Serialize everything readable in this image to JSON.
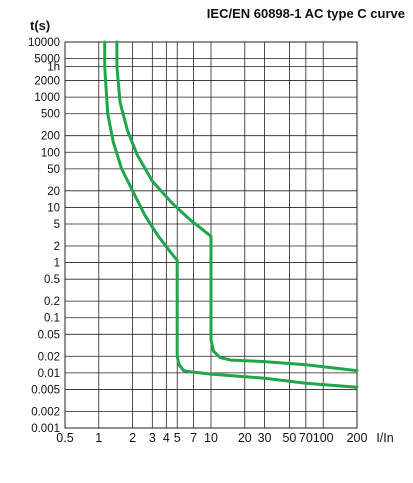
{
  "chart_data": {
    "type": "line",
    "title": "IEC/EN 60898-1 AC type C curve",
    "ylabel": "t(s)",
    "xlabel": "I/In",
    "x_scale": "log",
    "y_scale": "log",
    "xlim": [
      0.5,
      200
    ],
    "ylim": [
      0.001,
      10000
    ],
    "grid": true,
    "line_color": "#1fa64a",
    "y_ticks": [
      {
        "value": 10000,
        "label": "10000"
      },
      {
        "value": 5000,
        "label": "5000"
      },
      {
        "value": 3600,
        "label": "1h"
      },
      {
        "value": 2000,
        "label": "2000"
      },
      {
        "value": 1000,
        "label": "1000"
      },
      {
        "value": 500,
        "label": "500"
      },
      {
        "value": 200,
        "label": "200"
      },
      {
        "value": 100,
        "label": "100"
      },
      {
        "value": 50,
        "label": "50"
      },
      {
        "value": 20,
        "label": "20"
      },
      {
        "value": 10,
        "label": "10"
      },
      {
        "value": 5,
        "label": "5"
      },
      {
        "value": 2,
        "label": "2"
      },
      {
        "value": 1,
        "label": "1"
      },
      {
        "value": 0.5,
        "label": "0.5"
      },
      {
        "value": 0.2,
        "label": "0.2"
      },
      {
        "value": 0.1,
        "label": "0.1"
      },
      {
        "value": 0.05,
        "label": "0.05"
      },
      {
        "value": 0.02,
        "label": "0.02"
      },
      {
        "value": 0.01,
        "label": "0.01"
      },
      {
        "value": 0.005,
        "label": "0.005"
      },
      {
        "value": 0.002,
        "label": "0.002"
      },
      {
        "value": 0.001,
        "label": "0.001"
      }
    ],
    "x_ticks": [
      {
        "value": 0.5,
        "label": "0.5"
      },
      {
        "value": 1,
        "label": "1"
      },
      {
        "value": 2,
        "label": "2"
      },
      {
        "value": 3,
        "label": "3"
      },
      {
        "value": 4,
        "label": "4"
      },
      {
        "value": 5,
        "label": "5"
      },
      {
        "value": 7,
        "label": "7"
      },
      {
        "value": 10,
        "label": "10"
      },
      {
        "value": 20,
        "label": "20"
      },
      {
        "value": 30,
        "label": "30"
      },
      {
        "value": 50,
        "label": "50"
      },
      {
        "value": 70,
        "label": "70"
      },
      {
        "value": 100,
        "label": "100"
      },
      {
        "value": 200,
        "label": "200"
      }
    ],
    "series": [
      {
        "x": [
          1.13,
          1.13,
          1.2,
          1.35,
          1.6,
          2.0,
          2.6,
          3.4,
          4.3,
          5.0,
          5.0,
          5.0,
          5.2,
          5.7,
          6.5,
          10,
          30,
          70,
          200
        ],
        "y": [
          10000,
          3600,
          500,
          150,
          50,
          20,
          7,
          3,
          1.6,
          1.1,
          0.5,
          0.02,
          0.014,
          0.011,
          0.0105,
          0.0095,
          0.008,
          0.0065,
          0.0055
        ]
      },
      {
        "x": [
          1.45,
          1.45,
          1.55,
          1.8,
          2.2,
          3.0,
          4.5,
          6.5,
          10,
          10,
          10,
          10.5,
          12,
          15,
          30,
          70,
          200
        ],
        "y": [
          10000,
          3600,
          800,
          250,
          90,
          30,
          12,
          6,
          3,
          1,
          0.04,
          0.025,
          0.019,
          0.017,
          0.016,
          0.014,
          0.011
        ]
      }
    ]
  }
}
